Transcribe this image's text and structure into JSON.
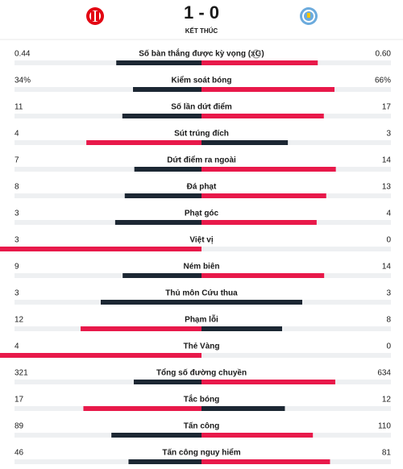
{
  "header": {
    "score": "1 - 0",
    "status": "KẾT THÚC"
  },
  "stats": [
    {
      "label": "Số bàn thắng được kỳ vọng (xG)",
      "home": 0.44,
      "away": 0.6,
      "away_label": "0.60"
    },
    {
      "label": "Kiểm soát bóng",
      "home": 34,
      "away": 66,
      "home_label": "34%",
      "away_label": "66%"
    },
    {
      "label": "Số lần dứt điểm",
      "home": 11,
      "away": 17
    },
    {
      "label": "Sút trúng đích",
      "home": 4,
      "away": 3
    },
    {
      "label": "Dứt điểm ra ngoài",
      "home": 7,
      "away": 14
    },
    {
      "label": "Đá phạt",
      "home": 8,
      "away": 13
    },
    {
      "label": "Phạt góc",
      "home": 3,
      "away": 4
    },
    {
      "label": "Việt vị",
      "home": 3,
      "away": 0
    },
    {
      "label": "Ném biên",
      "home": 9,
      "away": 14
    },
    {
      "label": "Thủ môn Cứu thua",
      "home": 3,
      "away": 3
    },
    {
      "label": "Phạm lỗi",
      "home": 12,
      "away": 8
    },
    {
      "label": "Thẻ Vàng",
      "home": 4,
      "away": 0
    },
    {
      "label": "Tổng số đường chuyền",
      "home": 321,
      "away": 634
    },
    {
      "label": "Tắc bóng",
      "home": 17,
      "away": 12
    },
    {
      "label": "Tấn công",
      "home": 89,
      "away": 110
    },
    {
      "label": "Tấn công nguy hiểm",
      "home": 46,
      "away": 81
    }
  ]
}
